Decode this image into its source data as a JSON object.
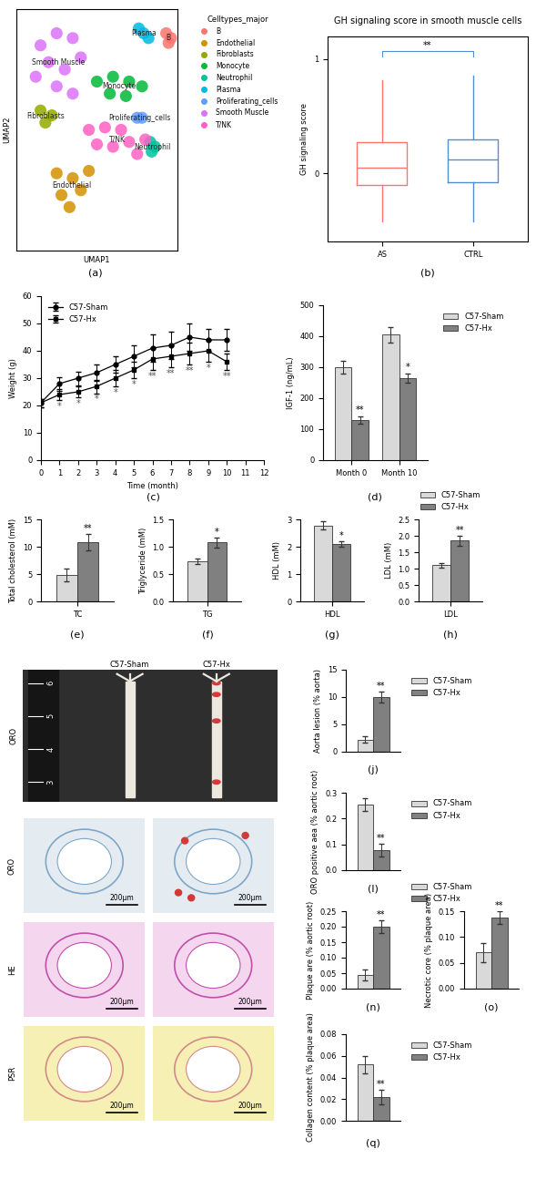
{
  "chart_data": [
    {
      "type": "scatter",
      "panel": "(a)",
      "x_label": "UMAP1",
      "y_label": "UMAP2",
      "legend_title": "Celltypes_major",
      "legend": "right",
      "tick_labels": false,
      "xlim": [
        0,
        10
      ],
      "ylim": [
        0,
        10
      ],
      "series": [
        {
          "name": "B",
          "color": "#f8766d",
          "x": [
            9.3,
            9.6,
            9.45
          ],
          "y": [
            9.0,
            8.8,
            8.6
          ]
        },
        {
          "name": "Endothelial",
          "color": "#d39200",
          "x": [
            2.5,
            3.5,
            2.8,
            4.0,
            3.3,
            4.5
          ],
          "y": [
            3.2,
            3.0,
            2.3,
            2.5,
            1.8,
            3.3
          ]
        },
        {
          "name": "Fibroblasts",
          "color": "#93aa00",
          "x": [
            1.5,
            2.2,
            1.8
          ],
          "y": [
            5.8,
            5.6,
            5.3
          ]
        },
        {
          "name": "Monocyte",
          "color": "#00ba38",
          "x": [
            5.0,
            6.0,
            7.0,
            5.8,
            6.8,
            7.8
          ],
          "y": [
            7.0,
            7.2,
            7.0,
            6.5,
            6.4,
            6.8
          ]
        },
        {
          "name": "Neutrophil",
          "color": "#00c19f",
          "x": [
            8.3,
            8.6,
            8.4
          ],
          "y": [
            4.5,
            4.3,
            4.1
          ]
        },
        {
          "name": "Plasma",
          "color": "#00b9e3",
          "x": [
            7.6,
            7.9,
            8.2
          ],
          "y": [
            9.2,
            9.0,
            8.8
          ]
        },
        {
          "name": "Proliferating_cells",
          "color": "#619cff",
          "x": [
            7.5,
            7.8
          ],
          "y": [
            5.5,
            5.5
          ]
        },
        {
          "name": "Smooth Muscle",
          "color": "#db72fb",
          "x": [
            1.5,
            2.5,
            3.5,
            2.0,
            3.0,
            4.0,
            1.2,
            2.5,
            3.5
          ],
          "y": [
            8.5,
            9.0,
            8.8,
            7.8,
            7.5,
            8.0,
            7.2,
            6.8,
            6.5
          ]
        },
        {
          "name": "T/NK",
          "color": "#ff61c3",
          "x": [
            4.5,
            5.5,
            6.5,
            5.0,
            6.0,
            7.0,
            8.0,
            7.5
          ],
          "y": [
            5.0,
            5.1,
            5.0,
            4.4,
            4.3,
            4.5,
            4.6,
            4.0
          ]
        }
      ]
    },
    {
      "type": "box",
      "panel": "(b)",
      "title": "GH signaling score in smooth muscle cells",
      "y_label": "GH signaling score",
      "categories": [
        "AS",
        "CTRL"
      ],
      "colors": [
        "#f8766d",
        "#4f8fd0"
      ],
      "boxes": [
        {
          "whislo": -0.42,
          "q1": -0.1,
          "med": 0.05,
          "q3": 0.27,
          "whishi": 0.82
        },
        {
          "whislo": -0.42,
          "q1": -0.08,
          "med": 0.12,
          "q3": 0.3,
          "whishi": 0.86
        }
      ],
      "significance": "**",
      "ylim": [
        -0.6,
        1.2
      ],
      "yticks": [
        0,
        1
      ]
    },
    {
      "type": "line",
      "panel": "(c)",
      "x_label": "Time (month)",
      "y_label": "Weight (g)",
      "x": [
        0,
        1,
        2,
        3,
        4,
        5,
        6,
        7,
        8,
        9,
        10
      ],
      "xlim": [
        0,
        12
      ],
      "xticks": [
        0,
        1,
        2,
        3,
        4,
        5,
        6,
        7,
        8,
        9,
        10,
        11,
        12
      ],
      "ylim": [
        0,
        60
      ],
      "yticks": [
        0,
        10,
        20,
        30,
        40,
        50,
        60
      ],
      "legend": "upper left",
      "series": [
        {
          "name": "C57-Sham",
          "color": "#000000",
          "marker": "o",
          "line_style": "solid",
          "values": [
            21,
            28,
            30,
            32,
            35,
            38,
            41,
            42,
            45,
            44,
            44
          ],
          "errors": [
            1.5,
            2.5,
            2.5,
            3,
            3,
            4,
            5,
            5,
            5,
            4,
            4
          ]
        },
        {
          "name": "C57-Hx",
          "color": "#000000",
          "marker": "s",
          "line_style": "solid",
          "values": [
            21,
            24,
            25,
            27,
            30,
            33,
            37,
            38,
            39,
            40,
            36
          ],
          "errors": [
            1.5,
            2,
            2,
            2.5,
            3,
            3,
            4,
            4,
            4,
            4,
            3
          ],
          "significance": [
            null,
            "*",
            "*",
            "*",
            "*",
            "*",
            "**",
            "**",
            "**",
            "*",
            "**"
          ]
        }
      ]
    },
    {
      "type": "bar",
      "panel": "(d)",
      "y_label": "IGF-1 (ng/mL)",
      "categories": [
        "Month 0",
        "Month 10"
      ],
      "ylim": [
        0,
        500
      ],
      "yticks": [
        0,
        100,
        200,
        300,
        400,
        500
      ],
      "legend": "right",
      "series": [
        {
          "name": "C57-Sham",
          "color": "#d9d9d9",
          "values": [
            300,
            405
          ],
          "errors": [
            20,
            25
          ]
        },
        {
          "name": "C57-Hx",
          "color": "#808080",
          "values": [
            130,
            265
          ],
          "errors": [
            12,
            15
          ],
          "significance": [
            "**",
            "*"
          ]
        }
      ]
    },
    {
      "type": "bar",
      "panel": "(e)",
      "y_label": "Total cholesterol (mM)",
      "categories": [
        "TC"
      ],
      "ylim": [
        0,
        15
      ],
      "yticks": [
        0,
        5,
        10,
        15
      ],
      "series": [
        {
          "color": "#d9d9d9",
          "values": [
            4.8
          ],
          "errors": [
            1.2
          ]
        },
        {
          "color": "#808080",
          "values": [
            10.8
          ],
          "errors": [
            1.5
          ],
          "significance": [
            "**"
          ]
        }
      ]
    },
    {
      "type": "bar",
      "panel": "(f)",
      "y_label": "Triglyceride (mM)",
      "categories": [
        "TG"
      ],
      "ylim": [
        0,
        1.5
      ],
      "yticks": [
        {
          "value": 0,
          "label": "0.0"
        },
        {
          "value": 0.5,
          "label": "0.5"
        },
        {
          "value": 1,
          "label": "1.0"
        },
        {
          "value": 1.5,
          "label": "1.5"
        }
      ],
      "series": [
        {
          "color": "#d9d9d9",
          "values": [
            0.73
          ],
          "errors": [
            0.05
          ]
        },
        {
          "color": "#808080",
          "values": [
            1.08
          ],
          "errors": [
            0.09
          ],
          "significance": [
            "*"
          ]
        }
      ]
    },
    {
      "type": "bar",
      "panel": "(g)",
      "y_label": "HDL (mM)",
      "categories": [
        "HDL"
      ],
      "ylim": [
        0,
        3
      ],
      "yticks": [
        0,
        1,
        2,
        3
      ],
      "series": [
        {
          "color": "#d9d9d9",
          "values": [
            2.78
          ],
          "errors": [
            0.15
          ]
        },
        {
          "color": "#808080",
          "values": [
            2.1
          ],
          "errors": [
            0.1
          ],
          "significance": [
            "*"
          ]
        }
      ]
    },
    {
      "type": "bar",
      "panel": "(h)",
      "y_label": "LDL (mM)",
      "categories": [
        "LDL"
      ],
      "legend": "top",
      "ylim": [
        0,
        2.5
      ],
      "yticks": [
        {
          "value": 0,
          "label": "0.0"
        },
        {
          "value": 0.5,
          "label": "0.5"
        },
        {
          "value": 1,
          "label": "1.0"
        },
        {
          "value": 1.5,
          "label": "1.5"
        },
        {
          "value": 2,
          "label": "2.0"
        },
        {
          "value": 2.5,
          "label": "2.5"
        }
      ],
      "series": [
        {
          "name": "C57-Sham",
          "color": "#d9d9d9",
          "values": [
            1.1
          ],
          "errors": [
            0.08
          ]
        },
        {
          "name": "C57-Hx",
          "color": "#808080",
          "values": [
            1.85
          ],
          "errors": [
            0.15
          ],
          "significance": [
            "**"
          ]
        }
      ]
    },
    {
      "type": "image",
      "row_label": "ORO",
      "column_labels": [
        "C57-Sham",
        "C57-Hx"
      ],
      "ruler_ticks": [
        3,
        4,
        5,
        6
      ]
    },
    {
      "type": "bar",
      "panel": "(j)",
      "y_label": "Aorta lesion (% aorta)",
      "categories": [
        null
      ],
      "legend": "right",
      "ylim": [
        0,
        15
      ],
      "yticks": [
        0,
        5,
        10,
        15
      ],
      "series": [
        {
          "name": "C57-Sham",
          "color": "#d9d9d9",
          "values": [
            2.2
          ],
          "errors": [
            0.6
          ]
        },
        {
          "name": "C57-Hx",
          "color": "#808080",
          "values": [
            10
          ],
          "errors": [
            1.0
          ],
          "significance": [
            "**"
          ]
        }
      ]
    },
    {
      "type": "image",
      "row_labels": [
        "ORO",
        "HE",
        "PSR"
      ],
      "scale_bar": "200μm"
    },
    {
      "type": "bar",
      "panel": "(l)",
      "y_label": "ORO positive aea (% aortic root)",
      "categories": [
        null
      ],
      "legend": "right",
      "ylim": [
        0,
        0.3
      ],
      "yticks": [
        {
          "value": 0,
          "label": "0.0"
        },
        {
          "value": 0.1,
          "label": "0.1"
        },
        {
          "value": 0.2,
          "label": "0.2"
        },
        {
          "value": 0.3,
          "label": "0.3"
        }
      ],
      "series": [
        {
          "name": "C57-Sham",
          "color": "#d9d9d9",
          "values": [
            0.255
          ],
          "errors": [
            0.025
          ]
        },
        {
          "name": "C57-Hx",
          "color": "#808080",
          "values": [
            0.077
          ],
          "errors": [
            0.025
          ],
          "significance": [
            "**"
          ]
        }
      ]
    },
    {
      "type": "bar",
      "panel": "(n)",
      "y_label": "Plaque are (% aortic root)",
      "categories": [
        null
      ],
      "legend": "top right",
      "ylim": [
        0,
        0.25
      ],
      "yticks": [
        {
          "value": 0,
          "label": "0.00"
        },
        {
          "value": 0.05,
          "label": "0.05"
        },
        {
          "value": 0.1,
          "label": "0.10"
        },
        {
          "value": 0.15,
          "label": "0.15"
        },
        {
          "value": 0.2,
          "label": "0.20"
        },
        {
          "value": 0.25,
          "label": "0.25"
        }
      ],
      "series": [
        {
          "name": "C57-Sham",
          "color": "#d9d9d9",
          "values": [
            0.045
          ],
          "errors": [
            0.018
          ]
        },
        {
          "name": "C57-Hx",
          "color": "#808080",
          "values": [
            0.2
          ],
          "errors": [
            0.02
          ],
          "significance": [
            "**"
          ]
        }
      ]
    },
    {
      "type": "bar",
      "panel": "(o)",
      "y_label": "Necrotic core (% plaque area)",
      "categories": [
        null
      ],
      "ylim": [
        0,
        0.15
      ],
      "yticks": [
        {
          "value": 0,
          "label": "0.00"
        },
        {
          "value": 0.05,
          "label": "0.05"
        },
        {
          "value": 0.1,
          "label": "0.10"
        },
        {
          "value": 0.15,
          "label": "0.15"
        }
      ],
      "series": [
        {
          "color": "#d9d9d9",
          "values": [
            0.07
          ],
          "errors": [
            0.018
          ]
        },
        {
          "color": "#808080",
          "values": [
            0.138
          ],
          "errors": [
            0.012
          ],
          "significance": [
            "**"
          ]
        }
      ]
    },
    {
      "type": "bar",
      "panel": "(q)",
      "y_label": "Collagen content (% plaque area)",
      "categories": [
        null
      ],
      "legend": "right",
      "ylim": [
        0,
        0.08
      ],
      "yticks": [
        {
          "value": 0,
          "label": "0.00"
        },
        {
          "value": 0.02,
          "label": "0.02"
        },
        {
          "value": 0.04,
          "label": "0.04"
        },
        {
          "value": 0.06,
          "label": "0.06"
        },
        {
          "value": 0.08,
          "label": "0.08"
        }
      ],
      "series": [
        {
          "name": "C57-Sham",
          "color": "#d9d9d9",
          "values": [
            0.052
          ],
          "errors": [
            0.008
          ]
        },
        {
          "name": "C57-Hx",
          "color": "#808080",
          "values": [
            0.022
          ],
          "errors": [
            0.007
          ],
          "significance": [
            "**"
          ]
        }
      ]
    }
  ]
}
